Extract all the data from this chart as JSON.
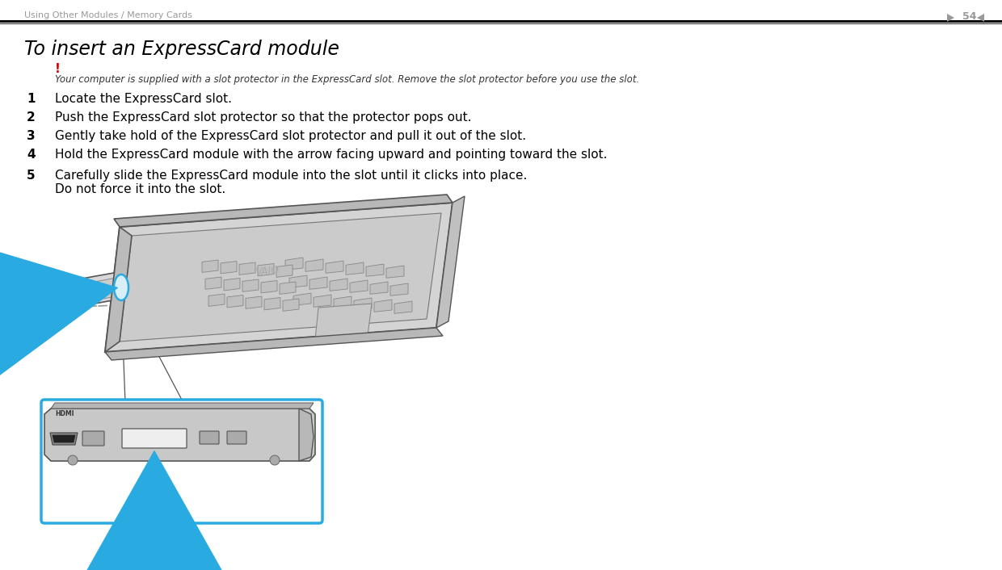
{
  "bg_color": "#ffffff",
  "header_text": "Using Other Modules / Memory Cards",
  "page_number": "54",
  "header_color": "#999999",
  "title": "To insert an ExpressCard module",
  "warning_symbol": "!",
  "warning_color": "#cc0000",
  "warning_text": "Your computer is supplied with a slot protector in the ExpressCard slot. Remove the slot protector before you use the slot.",
  "steps": [
    {
      "num": "1",
      "text": "Locate the ExpressCard slot."
    },
    {
      "num": "2",
      "text": "Push the ExpressCard slot protector so that the protector pops out."
    },
    {
      "num": "3",
      "text": "Gently take hold of the ExpressCard slot protector and pull it out of the slot."
    },
    {
      "num": "4",
      "text": "Hold the ExpressCard module with the arrow facing upward and pointing toward the slot."
    },
    {
      "num": "5",
      "text": "Carefully slide the ExpressCard module into the slot until it clicks into place.\nDo not force it into the slot."
    }
  ],
  "arrow_color": "#29abe2",
  "box_outline_color": "#29abe2",
  "laptop_fill": "#d4d4d4",
  "laptop_dark": "#b8b8b8",
  "laptop_outline": "#555555",
  "key_fill": "#c0c0c0",
  "key_edge": "#888888"
}
